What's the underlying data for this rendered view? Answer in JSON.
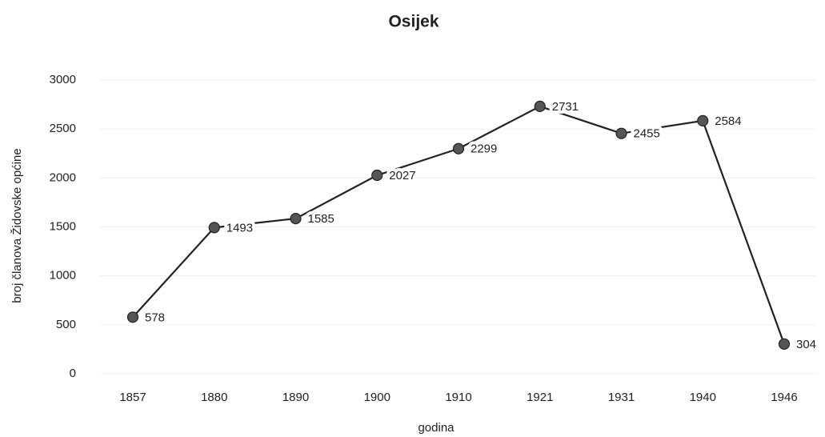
{
  "chart_data": {
    "type": "line",
    "title": "Osijek",
    "x_label": "godina",
    "y_label": "broj članova Židovske općine",
    "categories": [
      "1857",
      "1880",
      "1890",
      "1900",
      "1910",
      "1921",
      "1931",
      "1940",
      "1946"
    ],
    "values": [
      578,
      1493,
      1585,
      2027,
      2299,
      2731,
      2455,
      2584,
      304
    ],
    "color": "#222222",
    "marker_color": "#555555",
    "ylim": [
      0,
      3000
    ],
    "yticks": [
      0,
      500,
      1000,
      1500,
      2000,
      2500,
      3000
    ],
    "grid": true
  }
}
